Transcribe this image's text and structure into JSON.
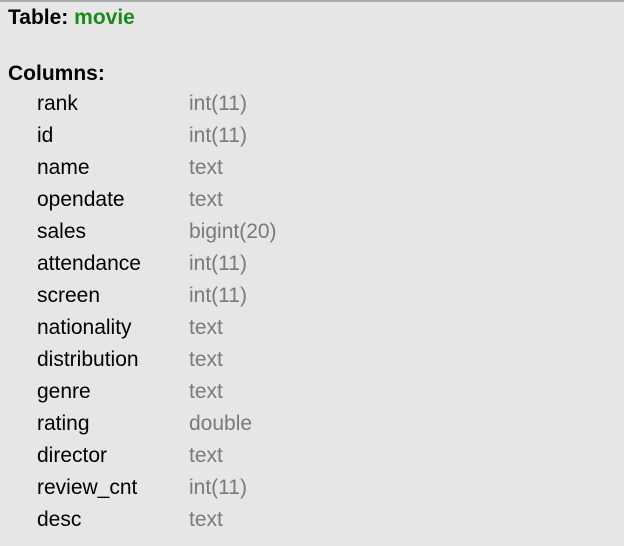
{
  "header": {
    "label": "Table:",
    "table_name": "movie"
  },
  "columns_label": "Columns:",
  "columns": [
    {
      "name": "rank",
      "type": "int(11)"
    },
    {
      "name": "id",
      "type": "int(11)"
    },
    {
      "name": "name",
      "type": "text"
    },
    {
      "name": "opendate",
      "type": "text"
    },
    {
      "name": "sales",
      "type": "bigint(20)"
    },
    {
      "name": "attendance",
      "type": "int(11)"
    },
    {
      "name": "screen",
      "type": "int(11)"
    },
    {
      "name": "nationality",
      "type": "text"
    },
    {
      "name": "distribution",
      "type": "text"
    },
    {
      "name": "genre",
      "type": "text"
    },
    {
      "name": "rating",
      "type": "double"
    },
    {
      "name": "director",
      "type": "text"
    },
    {
      "name": "review_cnt",
      "type": "int(11)"
    },
    {
      "name": "desc",
      "type": "text"
    }
  ],
  "colors": {
    "table_name": "#1a8a1a",
    "type_text": "#7a7a7a",
    "background": "#e6e6e6"
  }
}
